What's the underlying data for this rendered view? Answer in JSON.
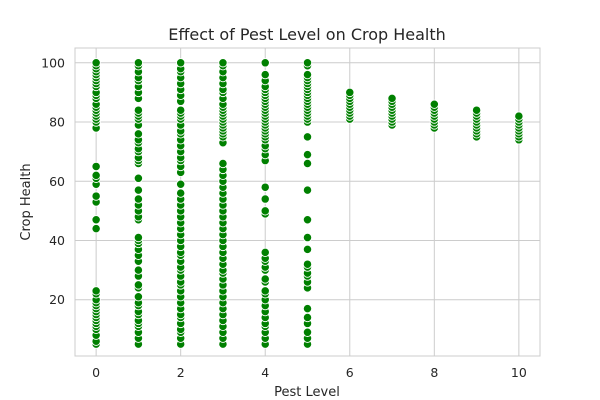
{
  "chart_data": {
    "type": "scatter",
    "title": "Effect of Pest Level on Crop Health",
    "xlabel": "Pest Level",
    "ylabel": "Crop Health",
    "xlim": [
      -0.5,
      10.5
    ],
    "ylim": [
      1,
      105
    ],
    "xticks": [
      0,
      2,
      4,
      6,
      8,
      10
    ],
    "yticks": [
      20,
      40,
      60,
      80,
      100
    ],
    "grid": true,
    "marker_color": "#008000",
    "points": [
      {
        "x": 0,
        "y": [
          5,
          6,
          8,
          10,
          11,
          12,
          13,
          14,
          15,
          16,
          17,
          18,
          19,
          20,
          22,
          23,
          44,
          47,
          53,
          55,
          59,
          61,
          62,
          65,
          78,
          80,
          81,
          82,
          83,
          84,
          85,
          86,
          88,
          89,
          90,
          92,
          93,
          94,
          95,
          96,
          97,
          98,
          99,
          100
        ]
      },
      {
        "x": 1,
        "y": [
          5,
          7,
          9,
          11,
          12,
          13,
          15,
          16,
          18,
          19,
          21,
          24,
          25,
          28,
          30,
          33,
          35,
          37,
          39,
          40,
          41,
          47,
          48,
          50,
          52,
          54,
          57,
          61,
          66,
          67,
          68,
          70,
          71,
          73,
          74,
          76,
          79,
          81,
          82,
          83,
          84,
          88,
          90,
          92,
          94,
          95,
          97,
          99,
          100
        ]
      },
      {
        "x": 2,
        "y": [
          5,
          7,
          9,
          10,
          12,
          14,
          15,
          17,
          19,
          21,
          23,
          25,
          26,
          28,
          30,
          31,
          33,
          35,
          36,
          38,
          40,
          42,
          44,
          46,
          48,
          50,
          52,
          54,
          56,
          59,
          63,
          65,
          67,
          68,
          70,
          72,
          74,
          76,
          77,
          79,
          81,
          82,
          83,
          84,
          87,
          89,
          91,
          93,
          95,
          97,
          98,
          100
        ]
      },
      {
        "x": 3,
        "y": [
          5,
          7,
          9,
          11,
          13,
          15,
          17,
          19,
          21,
          23,
          25,
          27,
          29,
          30,
          32,
          34,
          36,
          38,
          40,
          42,
          44,
          46,
          48,
          50,
          52,
          54,
          56,
          58,
          60,
          62,
          64,
          66,
          73,
          75,
          76,
          77,
          78,
          79,
          80,
          81,
          82,
          83,
          84,
          85,
          86,
          88,
          90,
          91,
          93,
          95,
          97,
          99,
          100
        ]
      },
      {
        "x": 4,
        "y": [
          5,
          7,
          9,
          11,
          12,
          14,
          16,
          18,
          20,
          22,
          23,
          26,
          27,
          30,
          31,
          33,
          34,
          36,
          49,
          50,
          54,
          58,
          67,
          69,
          71,
          72,
          74,
          75,
          76,
          77,
          78,
          79,
          80,
          81,
          82,
          83,
          84,
          85,
          86,
          87,
          88,
          89,
          90,
          91,
          92,
          94,
          96,
          100
        ]
      },
      {
        "x": 5,
        "y": [
          5,
          7,
          9,
          12,
          14,
          17,
          24,
          26,
          28,
          29,
          31,
          32,
          37,
          41,
          47,
          57,
          66,
          69,
          75,
          80,
          81,
          82,
          83,
          84,
          85,
          86,
          87,
          88,
          89,
          90,
          91,
          92,
          93,
          94,
          95,
          96,
          99,
          100
        ]
      },
      {
        "x": 6,
        "y": [
          81,
          82,
          83,
          84,
          85,
          86,
          87,
          88,
          89,
          90
        ]
      },
      {
        "x": 7,
        "y": [
          79,
          80,
          81,
          82,
          83,
          84,
          85,
          86,
          87,
          88
        ]
      },
      {
        "x": 8,
        "y": [
          78,
          79,
          80,
          81,
          82,
          83,
          84,
          85,
          86
        ]
      },
      {
        "x": 9,
        "y": [
          75,
          76,
          77,
          78,
          79,
          80,
          81,
          82,
          83,
          84
        ]
      },
      {
        "x": 10,
        "y": [
          74,
          75,
          76,
          77,
          78,
          79,
          80,
          81,
          82
        ]
      }
    ]
  }
}
